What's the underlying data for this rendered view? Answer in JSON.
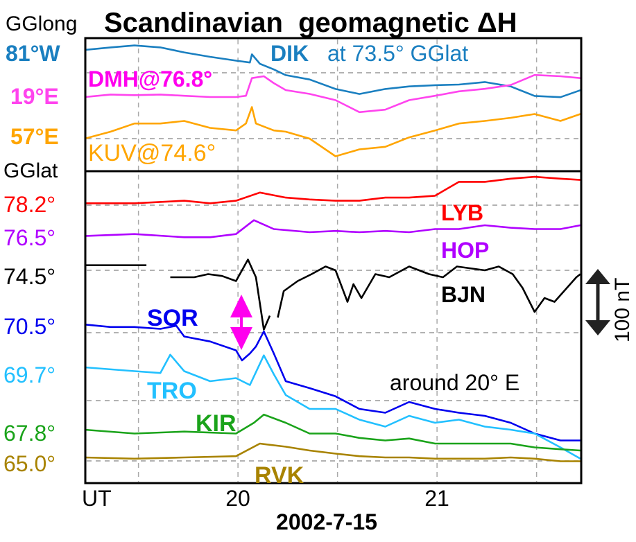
{
  "chart_data": {
    "type": "line",
    "title": "Scandinavian  geomagnetic ΔH",
    "xlabel": "2002-7-15",
    "x_unit_label": "UT",
    "xticks": [
      "20",
      "21"
    ],
    "xlim": [
      19.23,
      21.72
    ],
    "grid": true,
    "header_left": "GGlong",
    "lat_header": "GGlat",
    "scale_bar": "100 nT",
    "region_note": "around 20° E",
    "colors": {
      "DIK": "#1a7fc0",
      "DMH": "#ff44ee",
      "KUV": "#ffa500",
      "LYB": "#ff0000",
      "HOP": "#b000ff",
      "BJN": "#000000",
      "SOR": "#0000ee",
      "TRO": "#22c0ff",
      "KIR": "#1aa31a",
      "RVK": "#a88300",
      "arrow": "#ff00ee"
    },
    "top_panel": {
      "row_labels": [
        "81°W",
        "19°E",
        "57°E"
      ],
      "annotations": {
        "DIK": "DIK",
        "DIK_suffix": "at 73.5° GGlat",
        "DMH": "DMH@76.8°",
        "KUV": "KUV@74.6°"
      },
      "series": [
        {
          "name": "DIK",
          "t": [
            19.23,
            19.36,
            19.48,
            19.61,
            19.73,
            19.86,
            19.99,
            20.06,
            20.07,
            20.11,
            20.18,
            20.24,
            20.36,
            20.49,
            20.61,
            20.74,
            20.86,
            20.99,
            21.11,
            21.24,
            21.37,
            21.49,
            21.62,
            21.72
          ],
          "v": [
            0,
            4,
            7,
            4,
            -4,
            -11,
            -17,
            -20,
            -7,
            -22,
            -31,
            -40,
            -47,
            -62,
            -70,
            -62,
            -58,
            -56,
            -55,
            -51,
            -58,
            -73,
            -75,
            -64
          ]
        },
        {
          "name": "DMH",
          "t": [
            19.23,
            19.36,
            19.48,
            19.61,
            19.73,
            19.86,
            19.99,
            20.04,
            20.07,
            20.13,
            20.18,
            20.24,
            20.36,
            20.49,
            20.61,
            20.74,
            20.86,
            20.99,
            21.11,
            21.24,
            21.37,
            21.49,
            21.62,
            21.72
          ],
          "v": [
            0,
            4,
            3,
            4,
            2,
            0,
            0,
            2,
            30,
            33,
            22,
            11,
            5,
            -5,
            -24,
            -20,
            -5,
            2,
            9,
            13,
            19,
            35,
            33,
            30
          ]
        },
        {
          "name": "KUV",
          "t": [
            19.23,
            19.36,
            19.48,
            19.61,
            19.73,
            19.86,
            19.99,
            20.04,
            20.07,
            20.09,
            20.18,
            20.24,
            20.36,
            20.49,
            20.61,
            20.74,
            20.86,
            20.99,
            21.11,
            21.24,
            21.37,
            21.49,
            21.62,
            21.72
          ],
          "v": [
            0,
            11,
            24,
            24,
            28,
            17,
            13,
            24,
            50,
            24,
            13,
            11,
            0,
            -28,
            -17,
            -13,
            2,
            13,
            24,
            28,
            33,
            39,
            28,
            39
          ]
        }
      ]
    },
    "bottom_panel": {
      "row_labels": [
        "78.2°",
        "76.5°",
        "74.5°",
        "70.5°",
        "69.7°",
        "67.8°",
        "65.0°"
      ],
      "annotations": [
        "LYB",
        "HOP",
        "BJN",
        "SOR",
        "TRO",
        "KIR",
        "RVK"
      ],
      "series": [
        {
          "name": "LYB",
          "t": [
            19.23,
            19.48,
            19.73,
            19.86,
            19.99,
            20.11,
            20.24,
            20.36,
            20.49,
            20.61,
            20.74,
            20.86,
            20.99,
            21.11,
            21.24,
            21.37,
            21.49,
            21.62,
            21.72
          ],
          "v": [
            3,
            3,
            7,
            3,
            7,
            20,
            12,
            9,
            7,
            7,
            12,
            12,
            15,
            37,
            37,
            42,
            45,
            42,
            40
          ]
        },
        {
          "name": "HOP",
          "t": [
            19.23,
            19.48,
            19.73,
            19.86,
            19.99,
            20.08,
            20.18,
            20.36,
            20.49,
            20.61,
            20.74,
            20.86,
            20.99,
            21.11,
            21.24,
            21.37,
            21.49,
            21.62,
            21.72
          ],
          "v": [
            5,
            8,
            3,
            3,
            8,
            30,
            16,
            11,
            13,
            11,
            13,
            11,
            16,
            16,
            22,
            18,
            16,
            16,
            22
          ]
        },
        {
          "name": "BJN",
          "t": [
            19.23,
            19.54,
            null,
            19.66,
            19.78,
            19.85,
            19.92,
            19.99,
            20.05,
            20.09,
            20.13,
            20.16,
            null,
            20.2,
            20.23,
            20.3,
            20.37,
            20.44,
            20.49,
            20.55,
            20.58,
            20.62,
            20.69,
            20.76,
            20.86,
            20.96,
            21.03,
            21.1,
            21.24,
            21.31,
            21.38,
            21.43,
            21.49,
            21.54,
            21.59,
            21.7,
            21.72
          ],
          "v": [
            8,
            8,
            null,
            -11,
            -11,
            -6,
            -9,
            -17,
            17,
            -11,
            -94,
            -72,
            null,
            -75,
            -33,
            -17,
            -6,
            6,
            0,
            -50,
            -22,
            -44,
            -6,
            -11,
            6,
            -6,
            -11,
            6,
            0,
            6,
            -6,
            -28,
            -66,
            -44,
            -50,
            -11,
            -6
          ]
        },
        {
          "name": "SOR",
          "t": [
            19.23,
            19.36,
            19.48,
            19.61,
            19.69,
            19.73,
            19.86,
            19.99,
            20.02,
            20.06,
            20.09,
            20.13,
            20.18,
            20.24,
            20.36,
            20.49,
            20.61,
            20.74,
            20.86,
            20.99,
            21.11,
            21.24,
            21.37,
            21.49,
            21.62,
            21.72
          ],
          "v": [
            13,
            9,
            9,
            6,
            11,
            -6,
            -14,
            -28,
            -44,
            -33,
            -22,
            2,
            -33,
            -77,
            -88,
            -101,
            -121,
            -127,
            -110,
            -121,
            -127,
            -132,
            -143,
            -160,
            -171,
            -171
          ]
        },
        {
          "name": "TRO",
          "t": [
            19.23,
            19.48,
            19.61,
            19.66,
            19.73,
            19.86,
            19.99,
            20.06,
            20.13,
            20.18,
            20.24,
            20.36,
            20.49,
            20.61,
            20.74,
            20.86,
            20.99,
            21.11,
            21.24,
            21.37,
            21.49,
            21.62,
            21.72
          ],
          "v": [
            0,
            -6,
            -9,
            20,
            -6,
            -22,
            -17,
            -28,
            19,
            -11,
            -44,
            -66,
            -66,
            -83,
            -94,
            -77,
            -88,
            -83,
            -94,
            -99,
            -105,
            -127,
            -145
          ]
        },
        {
          "name": "KIR",
          "t": [
            19.23,
            19.48,
            19.73,
            19.99,
            20.08,
            20.13,
            20.24,
            20.36,
            20.49,
            20.61,
            20.74,
            20.86,
            20.99,
            21.11,
            21.24,
            21.37,
            21.49,
            21.62,
            21.72
          ],
          "v": [
            0,
            -6,
            -3,
            -6,
            11,
            24,
            11,
            -6,
            -6,
            -13,
            -17,
            -14,
            -22,
            -22,
            -22,
            -22,
            -28,
            -31,
            -33
          ]
        },
        {
          "name": "RVK",
          "t": [
            19.23,
            19.48,
            19.73,
            19.99,
            20.11,
            20.24,
            20.36,
            20.49,
            20.61,
            20.74,
            20.86,
            20.99,
            21.11,
            21.24,
            21.37,
            21.49,
            21.62,
            21.72
          ],
          "v": [
            0,
            -2,
            0,
            2,
            22,
            17,
            11,
            6,
            2,
            0,
            0,
            -2,
            -2,
            -2,
            0,
            -2,
            -6,
            -6
          ]
        }
      ]
    }
  }
}
